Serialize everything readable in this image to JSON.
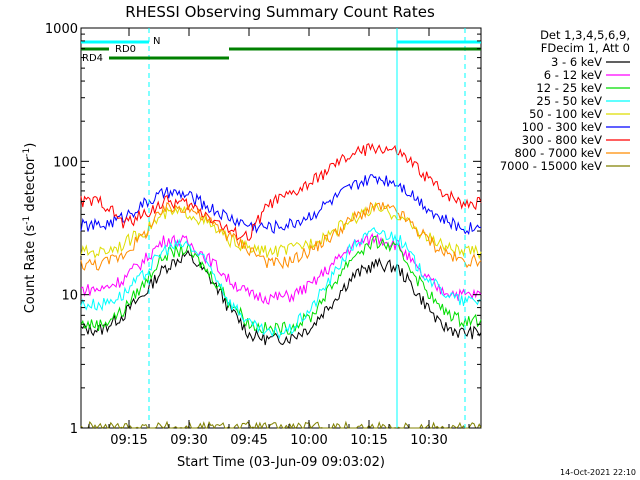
{
  "chart_data": {
    "type": "line",
    "title": "RHESSI Observing Summary Count Rates",
    "xlabel": "Start Time (03-Jun-09 09:03:02)",
    "ylabel_main": "Count Rate (s",
    "ylabel_sup1": "-1",
    "ylabel_mid": " detector",
    "ylabel_sup2": "-1",
    "ylabel_end": ")",
    "y_scale": "log",
    "ylim": [
      1,
      1000
    ],
    "xlim_minutes": [
      0,
      100
    ],
    "x_ticks": [
      {
        "minute": 12,
        "label": "09:15"
      },
      {
        "minute": 27,
        "label": "09:30"
      },
      {
        "minute": 42,
        "label": "09:45"
      },
      {
        "minute": 57,
        "label": "10:00"
      },
      {
        "minute": 72,
        "label": "10:15"
      },
      {
        "minute": 87,
        "label": "10:30"
      }
    ],
    "y_ticks": [
      {
        "value": 1,
        "label": "1"
      },
      {
        "value": 10,
        "label": "10"
      },
      {
        "value": 100,
        "label": "100"
      },
      {
        "value": 1000,
        "label": "1000"
      }
    ],
    "detector_info_line1": "Det 1,3,4,5,6,9,",
    "detector_info_line2": "FDecim 1, Att 0",
    "legend_position": "right",
    "series": [
      {
        "name": "3 - 6 keV",
        "color": "#000000",
        "values": [
          5.5,
          5.5,
          7,
          10,
          16,
          20,
          14,
          8,
          5,
          4.6,
          4.8,
          5.8,
          9,
          14,
          17,
          16,
          10,
          6,
          5.2,
          5.2
        ]
      },
      {
        "name": "6 - 12 keV",
        "color": "#ff00ff",
        "values": [
          11,
          11,
          13,
          18,
          26,
          25,
          19,
          13,
          10,
          9.5,
          9.8,
          12,
          17,
          24,
          27,
          24,
          15,
          11,
          10,
          10
        ]
      },
      {
        "name": "12 - 25 keV",
        "color": "#00dd00",
        "values": [
          6,
          6,
          7.5,
          12,
          20,
          22,
          15,
          9,
          6,
          5.5,
          5.7,
          7,
          12,
          20,
          25,
          22,
          13,
          8,
          6.5,
          6.5
        ]
      },
      {
        "name": "25 - 50 keV",
        "color": "#00ffff",
        "values": [
          8.5,
          8.5,
          10,
          14,
          22,
          24,
          17,
          9,
          6,
          5,
          5.5,
          8,
          14,
          24,
          30,
          27,
          16,
          11,
          9,
          9
        ]
      },
      {
        "name": "50 - 100 keV",
        "color": "#dddd00",
        "values": [
          21,
          21,
          24,
          30,
          40,
          42,
          34,
          26,
          22,
          21,
          22,
          25,
          30,
          38,
          44,
          40,
          30,
          24,
          21,
          21
        ]
      },
      {
        "name": "100 - 300 keV",
        "color": "#0000ff",
        "values": [
          33,
          33,
          38,
          48,
          58,
          56,
          46,
          38,
          33,
          32,
          34,
          40,
          52,
          66,
          76,
          70,
          52,
          38,
          32,
          32
        ]
      },
      {
        "name": "300 - 800 keV",
        "color": "#ff0000",
        "values": [
          50,
          50,
          34,
          40,
          50,
          48,
          40,
          30,
          27,
          49,
          56,
          70,
          92,
          115,
          128,
          118,
          88,
          62,
          50,
          49
        ]
      },
      {
        "name": "800 - 7000 keV",
        "color": "#ff8c00",
        "values": [
          17,
          17,
          20,
          28,
          44,
          46,
          36,
          28,
          22,
          17,
          18,
          22,
          28,
          38,
          46,
          42,
          30,
          22,
          18,
          18
        ]
      },
      {
        "name": "7000 - 15000 keV",
        "color": "#808000",
        "values": [
          1,
          1,
          1,
          1,
          1,
          1,
          1,
          1,
          1,
          1,
          1,
          1,
          1,
          1,
          1,
          1,
          1,
          1,
          1,
          1
        ]
      }
    ],
    "flag_bars": [
      {
        "label": "N",
        "color": "#00ffff"
      },
      {
        "label": "RD0",
        "color": "#008000"
      },
      {
        "label": "RD4",
        "color": "#008000"
      }
    ]
  },
  "timestamp": "14-Oct-2021 22:10"
}
